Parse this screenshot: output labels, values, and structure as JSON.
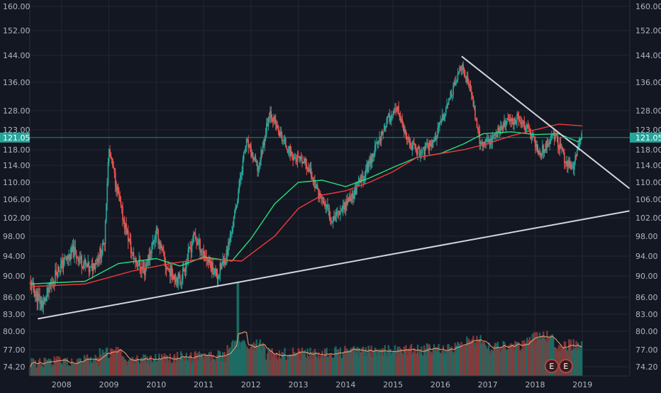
{
  "chart_data": {
    "type": "candlestick",
    "x_axis": {
      "labels": [
        "2008",
        "2009",
        "2010",
        "2011",
        "2012",
        "2013",
        "2014",
        "2015",
        "2016",
        "2017",
        "2018",
        "2019"
      ]
    },
    "y_axis": {
      "ticks": [
        "160.00",
        "152.00",
        "144.00",
        "136.00",
        "128.00",
        "123.00",
        "118.00",
        "114.00",
        "110.00",
        "106.00",
        "102.00",
        "98.00",
        "94.00",
        "90.00",
        "86.00",
        "83.00",
        "80.00",
        "77.00",
        "74.20"
      ],
      "tick_values": [
        160,
        152,
        144,
        136,
        128,
        123,
        118,
        114,
        110,
        106,
        102,
        98,
        94,
        90,
        86,
        83,
        80,
        77,
        74.2
      ]
    },
    "price_anchors": [
      {
        "x": 2007.33,
        "y": 88.5
      },
      {
        "x": 2007.6,
        "y": 84.5
      },
      {
        "x": 2007.9,
        "y": 91
      },
      {
        "x": 2008.25,
        "y": 95
      },
      {
        "x": 2008.6,
        "y": 91
      },
      {
        "x": 2008.9,
        "y": 96
      },
      {
        "x": 2009.0,
        "y": 118
      },
      {
        "x": 2009.25,
        "y": 104
      },
      {
        "x": 2009.5,
        "y": 94
      },
      {
        "x": 2009.75,
        "y": 91
      },
      {
        "x": 2010.0,
        "y": 99
      },
      {
        "x": 2010.2,
        "y": 92
      },
      {
        "x": 2010.5,
        "y": 89
      },
      {
        "x": 2010.8,
        "y": 98
      },
      {
        "x": 2011.1,
        "y": 93
      },
      {
        "x": 2011.3,
        "y": 90
      },
      {
        "x": 2011.5,
        "y": 95
      },
      {
        "x": 2011.65,
        "y": 102
      },
      {
        "x": 2011.9,
        "y": 120
      },
      {
        "x": 2012.15,
        "y": 113
      },
      {
        "x": 2012.4,
        "y": 128
      },
      {
        "x": 2012.6,
        "y": 122
      },
      {
        "x": 2012.9,
        "y": 116
      },
      {
        "x": 2013.2,
        "y": 114
      },
      {
        "x": 2013.4,
        "y": 108
      },
      {
        "x": 2013.7,
        "y": 102
      },
      {
        "x": 2013.9,
        "y": 104
      },
      {
        "x": 2014.15,
        "y": 107
      },
      {
        "x": 2014.4,
        "y": 112
      },
      {
        "x": 2014.65,
        "y": 119
      },
      {
        "x": 2014.9,
        "y": 126
      },
      {
        "x": 2015.1,
        "y": 128
      },
      {
        "x": 2015.3,
        "y": 120
      },
      {
        "x": 2015.6,
        "y": 117
      },
      {
        "x": 2015.9,
        "y": 121
      },
      {
        "x": 2016.1,
        "y": 128
      },
      {
        "x": 2016.45,
        "y": 141
      },
      {
        "x": 2016.65,
        "y": 133
      },
      {
        "x": 2016.85,
        "y": 119
      },
      {
        "x": 2017.1,
        "y": 121
      },
      {
        "x": 2017.4,
        "y": 125
      },
      {
        "x": 2017.65,
        "y": 126
      },
      {
        "x": 2017.9,
        "y": 122
      },
      {
        "x": 2018.1,
        "y": 117
      },
      {
        "x": 2018.4,
        "y": 122
      },
      {
        "x": 2018.65,
        "y": 115
      },
      {
        "x": 2018.8,
        "y": 113
      },
      {
        "x": 2018.95,
        "y": 121
      }
    ],
    "moving_averages": [
      {
        "color": "#26e07c",
        "points": [
          {
            "x": 2007.33,
            "y": 88.5
          },
          {
            "x": 2008.5,
            "y": 89
          },
          {
            "x": 2009.2,
            "y": 92.5
          },
          {
            "x": 2010.0,
            "y": 93.5
          },
          {
            "x": 2010.5,
            "y": 92
          },
          {
            "x": 2011.0,
            "y": 93.8
          },
          {
            "x": 2011.6,
            "y": 93
          },
          {
            "x": 2012.0,
            "y": 97.5
          },
          {
            "x": 2012.5,
            "y": 105
          },
          {
            "x": 2013.0,
            "y": 110
          },
          {
            "x": 2013.5,
            "y": 110.5
          },
          {
            "x": 2014.0,
            "y": 109
          },
          {
            "x": 2014.5,
            "y": 111
          },
          {
            "x": 2015.0,
            "y": 113.5
          },
          {
            "x": 2015.5,
            "y": 116
          },
          {
            "x": 2016.0,
            "y": 117
          },
          {
            "x": 2016.5,
            "y": 119.5
          },
          {
            "x": 2016.9,
            "y": 122
          },
          {
            "x": 2017.5,
            "y": 122.5
          },
          {
            "x": 2018.0,
            "y": 121.8
          },
          {
            "x": 2018.5,
            "y": 122
          },
          {
            "x": 2018.9,
            "y": 120
          },
          {
            "x": 2019.0,
            "y": 121.05
          }
        ]
      },
      {
        "color": "#f23b3b",
        "points": [
          {
            "x": 2007.33,
            "y": 88
          },
          {
            "x": 2008.5,
            "y": 88.5
          },
          {
            "x": 2009.5,
            "y": 91
          },
          {
            "x": 2010.3,
            "y": 92.5
          },
          {
            "x": 2011.0,
            "y": 93.5
          },
          {
            "x": 2011.8,
            "y": 93
          },
          {
            "x": 2012.5,
            "y": 98
          },
          {
            "x": 2013.0,
            "y": 104
          },
          {
            "x": 2013.5,
            "y": 107
          },
          {
            "x": 2014.0,
            "y": 108
          },
          {
            "x": 2014.5,
            "y": 110
          },
          {
            "x": 2015.0,
            "y": 112.5
          },
          {
            "x": 2015.5,
            "y": 116
          },
          {
            "x": 2016.0,
            "y": 117
          },
          {
            "x": 2016.5,
            "y": 118
          },
          {
            "x": 2017.0,
            "y": 119.5
          },
          {
            "x": 2017.5,
            "y": 121.5
          },
          {
            "x": 2018.0,
            "y": 123
          },
          {
            "x": 2018.5,
            "y": 124.5
          },
          {
            "x": 2019.0,
            "y": 124
          }
        ]
      }
    ],
    "trendlines": [
      {
        "color": "#d1d4dc",
        "from": {
          "x": 2007.5,
          "y": 82.2
        },
        "to": {
          "x": 2020.0,
          "y": 103.5
        }
      },
      {
        "color": "#d1d4dc",
        "from": {
          "x": 2016.45,
          "y": 143.7
        },
        "to": {
          "x": 2020.0,
          "y": 108.5
        }
      }
    ],
    "last_price": {
      "value": 121.05,
      "label": "121.05",
      "color": "#26a69a"
    },
    "earnings_markers": [
      {
        "x": 2018.35,
        "label": "E"
      },
      {
        "x": 2018.65,
        "label": "E"
      }
    ],
    "colors": {
      "up": "#26a69a",
      "down": "#ef5350",
      "grid": "#232734",
      "background": "#131722"
    }
  }
}
